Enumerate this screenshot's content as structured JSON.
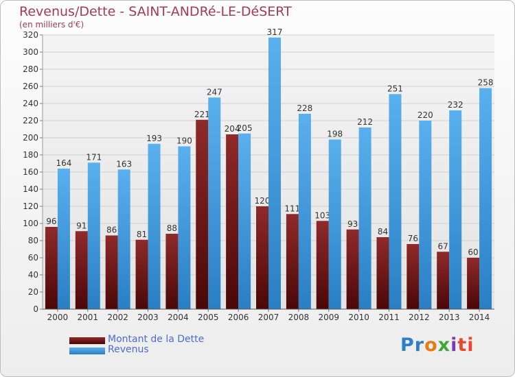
{
  "chart_data": {
    "type": "bar",
    "title": "Revenus/Dette - SAINT-ANDRé-LE-DéSERT",
    "subtitle": "(en milliers d'€)",
    "categories": [
      "2000",
      "2001",
      "2002",
      "2003",
      "2004",
      "2005",
      "2006",
      "2007",
      "2008",
      "2009",
      "2010",
      "2011",
      "2012",
      "2013",
      "2014"
    ],
    "series": [
      {
        "name": "Montant de la Dette",
        "color": "#7a1c1c",
        "values": [
          96,
          91,
          86,
          81,
          88,
          221,
          204,
          120,
          111,
          103,
          93,
          84,
          76,
          67,
          60
        ]
      },
      {
        "name": "Revenus",
        "color": "#3f9ee0",
        "values": [
          164,
          171,
          163,
          193,
          190,
          247,
          205,
          317,
          228,
          198,
          212,
          251,
          220,
          232,
          258
        ]
      }
    ],
    "ylim": [
      0,
      320
    ],
    "yticks": [
      0,
      20,
      40,
      60,
      80,
      100,
      120,
      140,
      160,
      180,
      200,
      220,
      240,
      260,
      280,
      300,
      320
    ],
    "grid": true,
    "legend_position": "bottom-left"
  },
  "logo": {
    "text": "Proxiti",
    "letters": [
      "Pr",
      "o",
      "x",
      "i",
      "ti"
    ]
  }
}
